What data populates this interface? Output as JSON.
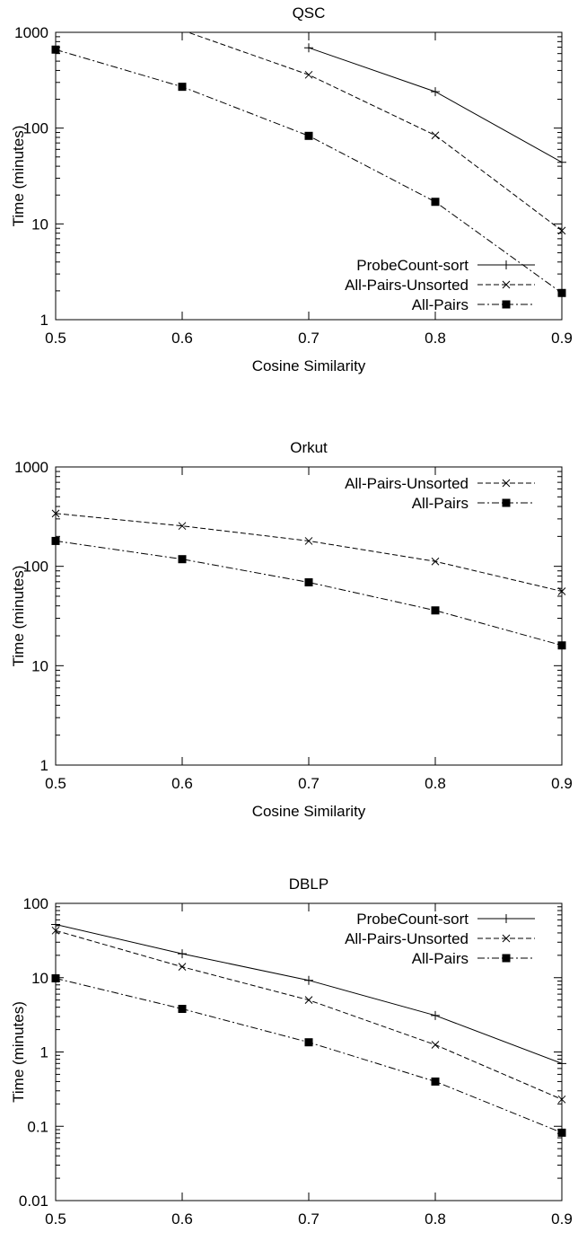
{
  "chart_data": [
    {
      "type": "line",
      "title": "QSC",
      "xlabel": "Cosine Similarity",
      "ylabel": "Time (minutes)",
      "yscale": "log",
      "xlim": [
        0.5,
        0.9
      ],
      "ylim": [
        1,
        1000
      ],
      "x_ticks": [
        "0.5",
        "0.6",
        "0.7",
        "0.8",
        "0.9"
      ],
      "y_ticks": [
        "1",
        "10",
        "100",
        "1000"
      ],
      "grid": false,
      "legend_position": "bottom-center",
      "series": [
        {
          "name": "ProbeCount-sort",
          "marker": "plus",
          "dash": "solid",
          "points": [
            [
              0.7,
              690
            ],
            [
              0.8,
              240
            ],
            [
              0.9,
              44
            ]
          ]
        },
        {
          "name": "All-Pairs-Unsorted",
          "marker": "cross",
          "dash": "dashed",
          "points": [
            [
              0.6,
              1050
            ],
            [
              0.7,
              360
            ],
            [
              0.8,
              84
            ],
            [
              0.9,
              8.5
            ]
          ]
        },
        {
          "name": "All-Pairs",
          "marker": "filled-square",
          "dash": "dash-dot",
          "points": [
            [
              0.5,
              660
            ],
            [
              0.6,
              270
            ],
            [
              0.7,
              83
            ],
            [
              0.8,
              17
            ],
            [
              0.9,
              1.9
            ]
          ]
        }
      ]
    },
    {
      "type": "line",
      "title": "Orkut",
      "xlabel": "Cosine Similarity",
      "ylabel": "Time (minutes)",
      "yscale": "log",
      "xlim": [
        0.5,
        0.9
      ],
      "ylim": [
        1,
        1000
      ],
      "x_ticks": [
        "0.5",
        "0.6",
        "0.7",
        "0.8",
        "0.9"
      ],
      "y_ticks": [
        "1",
        "10",
        "100",
        "1000"
      ],
      "grid": false,
      "legend_position": "top-right",
      "series": [
        {
          "name": "All-Pairs-Unsorted",
          "marker": "cross",
          "dash": "dashed",
          "points": [
            [
              0.5,
              340
            ],
            [
              0.6,
              255
            ],
            [
              0.7,
              180
            ],
            [
              0.8,
              112
            ],
            [
              0.9,
              56
            ]
          ]
        },
        {
          "name": "All-Pairs",
          "marker": "filled-square",
          "dash": "dash-dot",
          "points": [
            [
              0.5,
              180
            ],
            [
              0.6,
              118
            ],
            [
              0.7,
              69
            ],
            [
              0.8,
              36
            ],
            [
              0.9,
              16
            ]
          ]
        }
      ]
    },
    {
      "type": "line",
      "title": "DBLP",
      "xlabel": "Cosine Similarity",
      "ylabel": "Time (minutes)",
      "yscale": "log",
      "xlim": [
        0.5,
        0.9
      ],
      "ylim": [
        0.01,
        100
      ],
      "x_ticks": [
        "0.5",
        "0.6",
        "0.7",
        "0.8",
        "0.9"
      ],
      "y_ticks": [
        "0.01",
        "0.1",
        "1",
        "10",
        "100"
      ],
      "grid": false,
      "legend_position": "top-right",
      "series": [
        {
          "name": "ProbeCount-sort",
          "marker": "plus",
          "dash": "solid",
          "points": [
            [
              0.5,
              52
            ],
            [
              0.6,
              21
            ],
            [
              0.7,
              9.2
            ],
            [
              0.8,
              3.1
            ],
            [
              0.9,
              0.7
            ]
          ]
        },
        {
          "name": "All-Pairs-Unsorted",
          "marker": "cross",
          "dash": "dashed",
          "points": [
            [
              0.5,
              43
            ],
            [
              0.6,
              14
            ],
            [
              0.7,
              5.0
            ],
            [
              0.8,
              1.25
            ],
            [
              0.9,
              0.23
            ]
          ]
        },
        {
          "name": "All-Pairs",
          "marker": "filled-square",
          "dash": "dash-dot",
          "points": [
            [
              0.5,
              9.8
            ],
            [
              0.6,
              3.8
            ],
            [
              0.7,
              1.35
            ],
            [
              0.8,
              0.4
            ],
            [
              0.9,
              0.082
            ]
          ]
        }
      ]
    }
  ]
}
